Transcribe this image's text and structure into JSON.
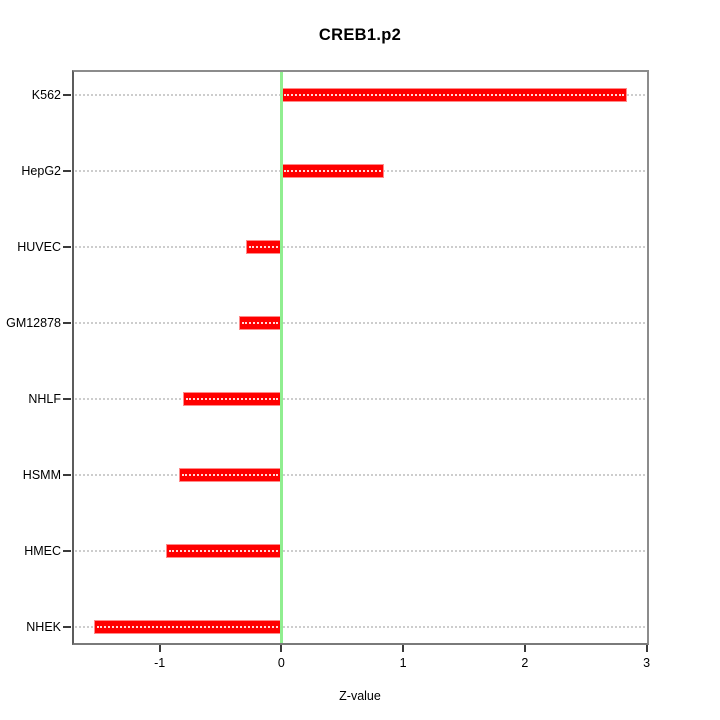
{
  "chart_data": {
    "type": "bar",
    "orientation": "horizontal",
    "title": "CREB1.p2",
    "xlabel": "Z-value",
    "categories": [
      "K562",
      "HepG2",
      "HUVEC",
      "GM12878",
      "NHLF",
      "HSMM",
      "HMEC",
      "NHEK"
    ],
    "values": [
      2.84,
      0.84,
      -0.29,
      -0.35,
      -0.81,
      -0.84,
      -0.95,
      -1.54
    ],
    "xlim": [
      -1.72,
      3.02
    ],
    "xticks": [
      -1,
      0,
      1,
      2,
      3
    ],
    "xtick_labels": [
      "-1",
      "0",
      "1",
      "2",
      "3"
    ],
    "zero_line": 0,
    "grid": "horizontal-dotted",
    "legend": "none",
    "colors": {
      "bar": "#ff0000",
      "bar_edge": "#ff8a8a",
      "zero_line": "#90ee90",
      "grid": "#cdcdcd",
      "box": "#8c8c8c",
      "tick": "#3a3a3a",
      "text": "#000000",
      "background": "#ffffff"
    }
  }
}
